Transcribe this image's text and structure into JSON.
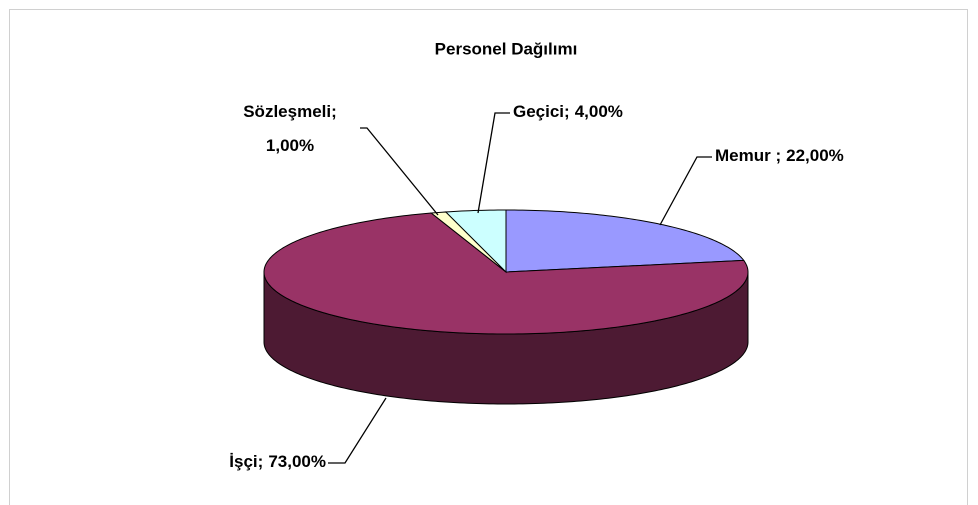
{
  "chart_data": {
    "type": "pie",
    "title": "Personel Dağılımı",
    "categories": [
      "Memur ;",
      "İşçi;",
      "Sözleşmeli;",
      "Geçici;"
    ],
    "values": [
      22,
      73,
      1,
      4
    ],
    "value_labels": [
      "22,00%",
      "73,00%",
      "1,00%",
      "4,00%"
    ],
    "colors": [
      "#9999ff",
      "#993366",
      "#ffffcc",
      "#ccffff"
    ],
    "three_d": true
  }
}
